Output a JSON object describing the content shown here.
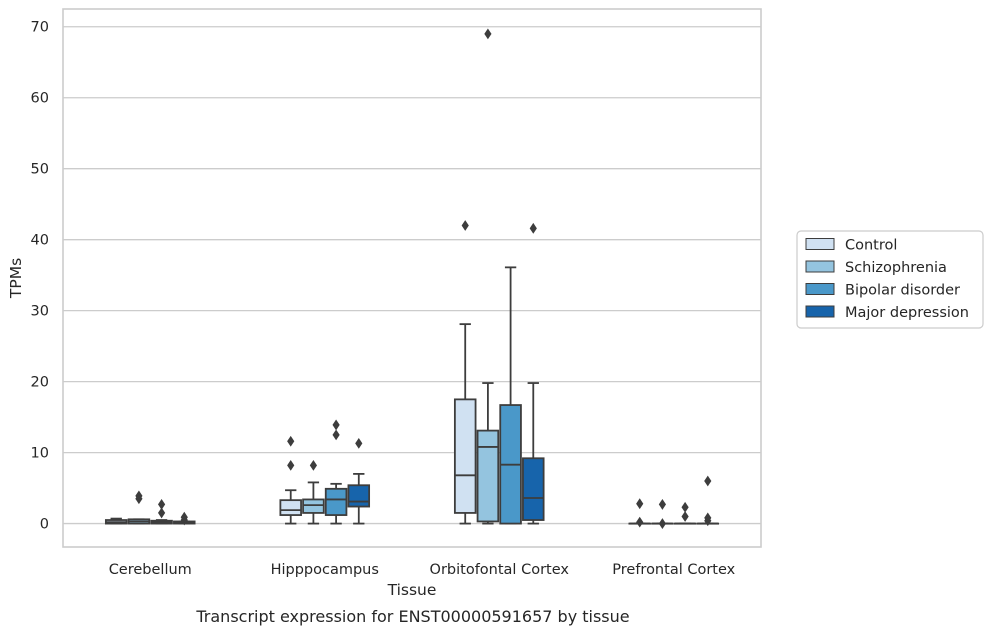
{
  "chart_data": {
    "type": "box",
    "title": "",
    "caption": "Transcript expression for ENST00000591657 by tissue",
    "xlabel": "Tissue",
    "ylabel": "TPMs",
    "ylim": [
      -3.3,
      72.5
    ],
    "yticks": [
      0,
      10,
      20,
      30,
      40,
      50,
      60,
      70
    ],
    "grid": "horizontal",
    "legend_position": "right",
    "categories": [
      "Cerebellum",
      "Hipppocampus",
      "Orbitofontal Cortex",
      "Prefrontal Cortex"
    ],
    "colors": {
      "Control": "#d0e1f2",
      "Schizophrenia": "#94c4df",
      "Bipolar disorder": "#4a98c9",
      "Major depression": "#1764ab",
      "edge": "#3d3d3d",
      "grid": "#cccccc",
      "frame": "#cccccc"
    },
    "series": [
      {
        "name": "Control",
        "boxes": [
          {
            "min": 0,
            "q1": 0,
            "median": 0.2,
            "q3": 0.5,
            "max": 0.7,
            "outliers": []
          },
          {
            "min": 0,
            "q1": 1.2,
            "median": 1.9,
            "q3": 3.3,
            "max": 4.7,
            "outliers": [
              8.2,
              11.6
            ]
          },
          {
            "min": 0,
            "q1": 1.5,
            "median": 6.8,
            "q3": 17.5,
            "max": 28.1,
            "outliers": [
              42.0
            ]
          },
          {
            "min": 0,
            "q1": 0,
            "median": 0,
            "q3": 0,
            "max": 0,
            "outliers": [
              0.2,
              2.8
            ]
          }
        ]
      },
      {
        "name": "Schizophrenia",
        "boxes": [
          {
            "min": 0,
            "q1": 0,
            "median": 0.3,
            "q3": 0.6,
            "max": 0.6,
            "outliers": [
              3.5,
              3.9
            ]
          },
          {
            "min": 0,
            "q1": 1.5,
            "median": 2.6,
            "q3": 3.4,
            "max": 5.8,
            "outliers": [
              8.2
            ]
          },
          {
            "min": 0,
            "q1": 0.3,
            "median": 10.8,
            "q3": 13.1,
            "max": 19.8,
            "outliers": [
              69.0
            ]
          },
          {
            "min": 0,
            "q1": 0,
            "median": 0,
            "q3": 0,
            "max": 0,
            "outliers": [
              0,
              2.7
            ]
          }
        ]
      },
      {
        "name": "Bipolar disorder",
        "boxes": [
          {
            "min": 0,
            "q1": 0,
            "median": 0.2,
            "q3": 0.4,
            "max": 0.5,
            "outliers": [
              1.5,
              2.7
            ]
          },
          {
            "min": 0,
            "q1": 1.2,
            "median": 3.4,
            "q3": 4.9,
            "max": 5.6,
            "outliers": [
              12.5,
              13.9
            ]
          },
          {
            "min": 0,
            "q1": 0,
            "median": 8.3,
            "q3": 16.7,
            "max": 36.1,
            "outliers": []
          },
          {
            "min": 0,
            "q1": 0,
            "median": 0,
            "q3": 0,
            "max": 0,
            "outliers": [
              1.0,
              2.3
            ]
          }
        ]
      },
      {
        "name": "Major depression",
        "boxes": [
          {
            "min": 0,
            "q1": 0,
            "median": 0.1,
            "q3": 0.3,
            "max": 0.3,
            "outliers": [
              0.5,
              0.9
            ]
          },
          {
            "min": 0,
            "q1": 2.4,
            "median": 3.1,
            "q3": 5.4,
            "max": 7.0,
            "outliers": [
              11.3
            ]
          },
          {
            "min": 0,
            "q1": 0.5,
            "median": 3.6,
            "q3": 9.2,
            "max": 19.8,
            "outliers": [
              41.6
            ]
          },
          {
            "min": 0,
            "q1": 0,
            "median": 0,
            "q3": 0,
            "max": 0,
            "outliers": [
              0.4,
              0.8,
              6.0
            ]
          }
        ]
      }
    ]
  }
}
